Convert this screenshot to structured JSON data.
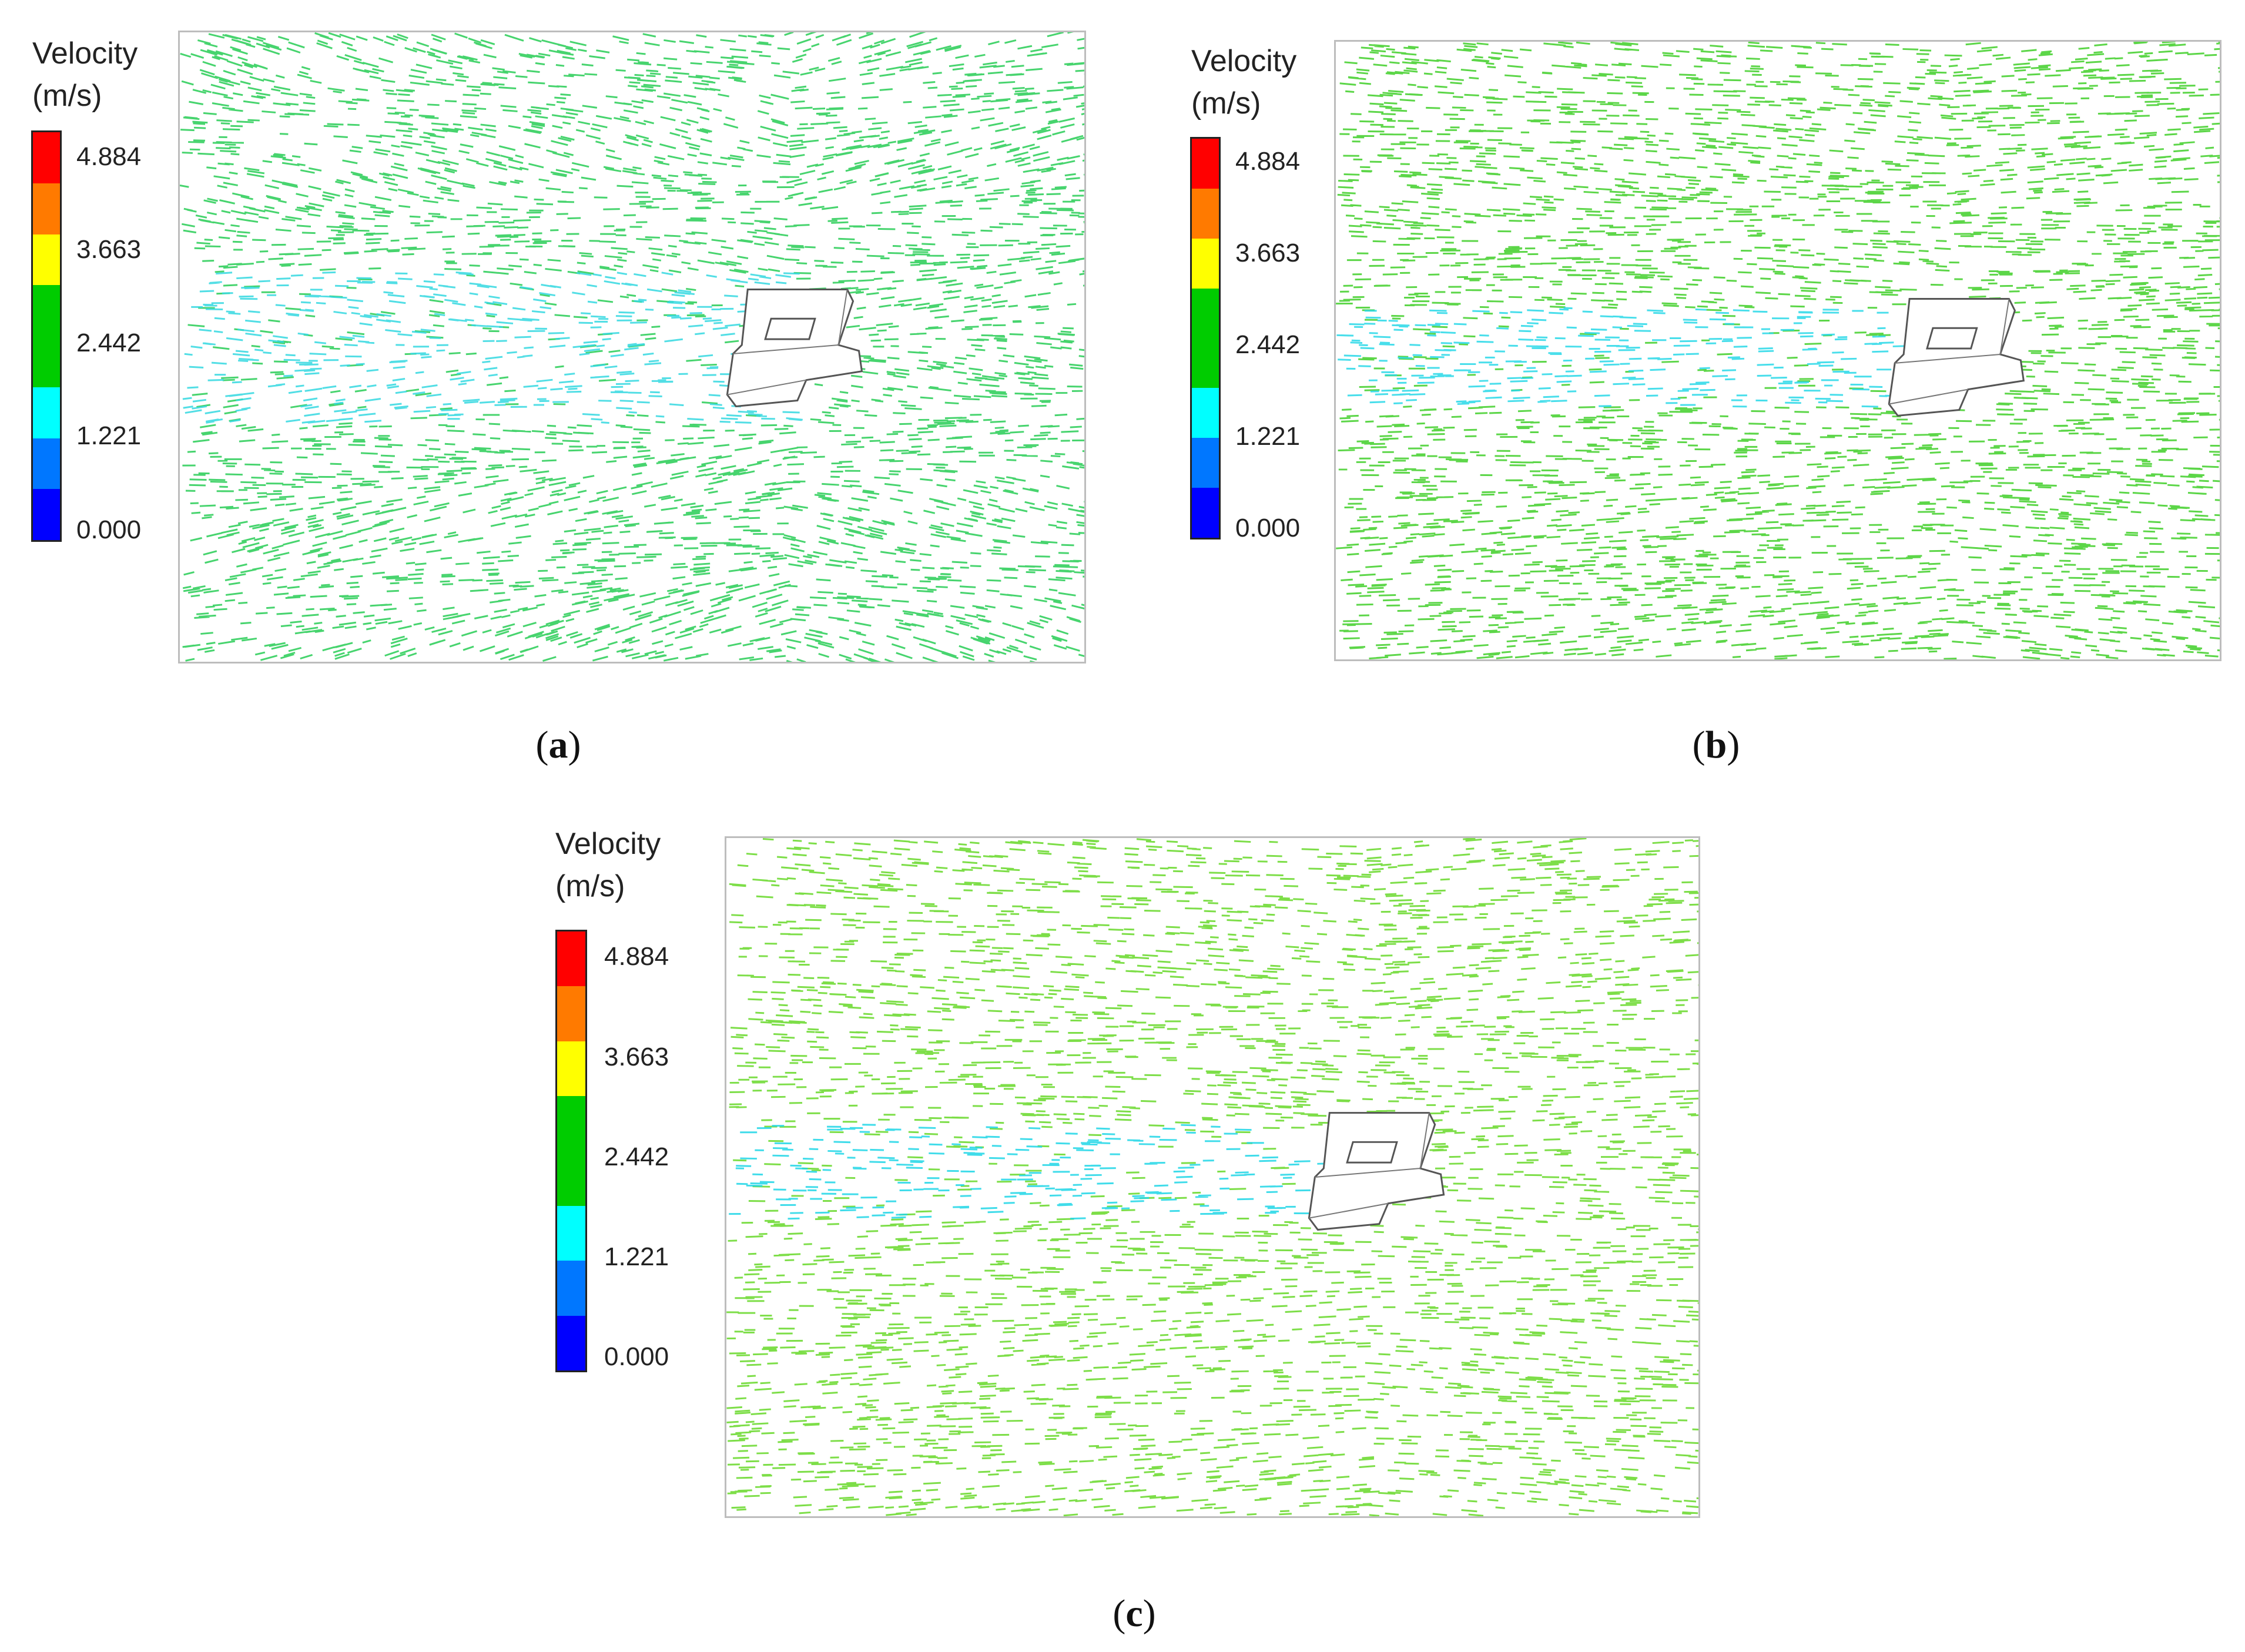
{
  "legend": {
    "title_line1": "Velocity",
    "title_line2": "(m/s)",
    "ticks": [
      "4.884",
      "3.663",
      "2.442",
      "1.221",
      "0.000"
    ],
    "band_colors": [
      "#ff0000",
      "#ff7a00",
      "#ffff00",
      "#00cc00",
      "#00cc00",
      "#00ffff",
      "#0077ff",
      "#0000ff"
    ]
  },
  "panels": [
    {
      "id": "a",
      "caption_open": "(",
      "caption_letter": "a",
      "caption_close": ")",
      "dominant_color": "#19c94a",
      "wake_color": "#34d8e0"
    },
    {
      "id": "b",
      "caption_open": "(",
      "caption_letter": "b",
      "caption_close": ")",
      "dominant_color": "#33cc1a",
      "wake_color": "#28d8e8"
    },
    {
      "id": "c",
      "caption_open": "(",
      "caption_letter": "c",
      "caption_close": ")",
      "dominant_color": "#5dd61a",
      "wake_color": "#1ed6e6"
    }
  ]
}
